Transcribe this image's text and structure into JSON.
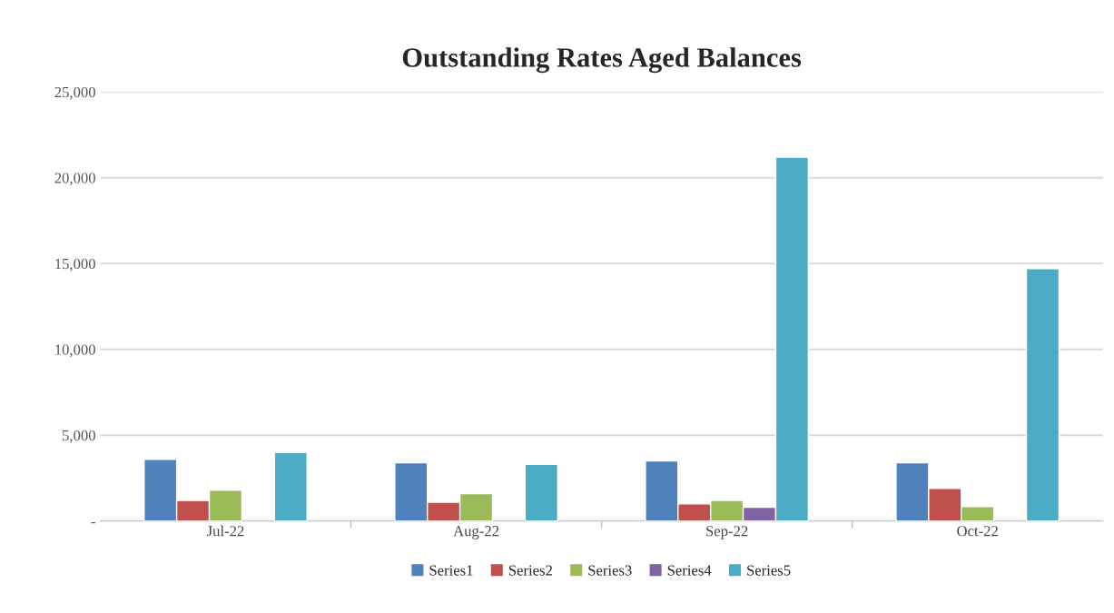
{
  "chart_data": {
    "type": "bar",
    "title": "Outstanding Rates Aged Balances",
    "categories": [
      "Jul-22",
      "Aug-22",
      "Sep-22",
      "Oct-22"
    ],
    "series": [
      {
        "name": "Series1",
        "color": "#4f81bd",
        "values": [
          3600,
          3400,
          3500,
          3400
        ]
      },
      {
        "name": "Series2",
        "color": "#c0504d",
        "values": [
          1200,
          1100,
          1000,
          1900
        ]
      },
      {
        "name": "Series3",
        "color": "#9bbb59",
        "values": [
          1800,
          1600,
          1200,
          850
        ]
      },
      {
        "name": "Series4",
        "color": "#8064a2",
        "values": [
          null,
          null,
          800,
          null
        ]
      },
      {
        "name": "Series5",
        "color": "#4bacc6",
        "values": [
          4000,
          3300,
          21200,
          14700
        ]
      }
    ],
    "ylim": [
      0,
      25000
    ],
    "yticks": [
      {
        "value": 0,
        "label": "-"
      },
      {
        "value": 5000,
        "label": "5,000"
      },
      {
        "value": 10000,
        "label": "10,000"
      },
      {
        "value": 15000,
        "label": "15,000"
      },
      {
        "value": 20000,
        "label": "20,000"
      },
      {
        "value": 25000,
        "label": "25,000"
      }
    ],
    "grid": "y",
    "legend": "bottom"
  }
}
